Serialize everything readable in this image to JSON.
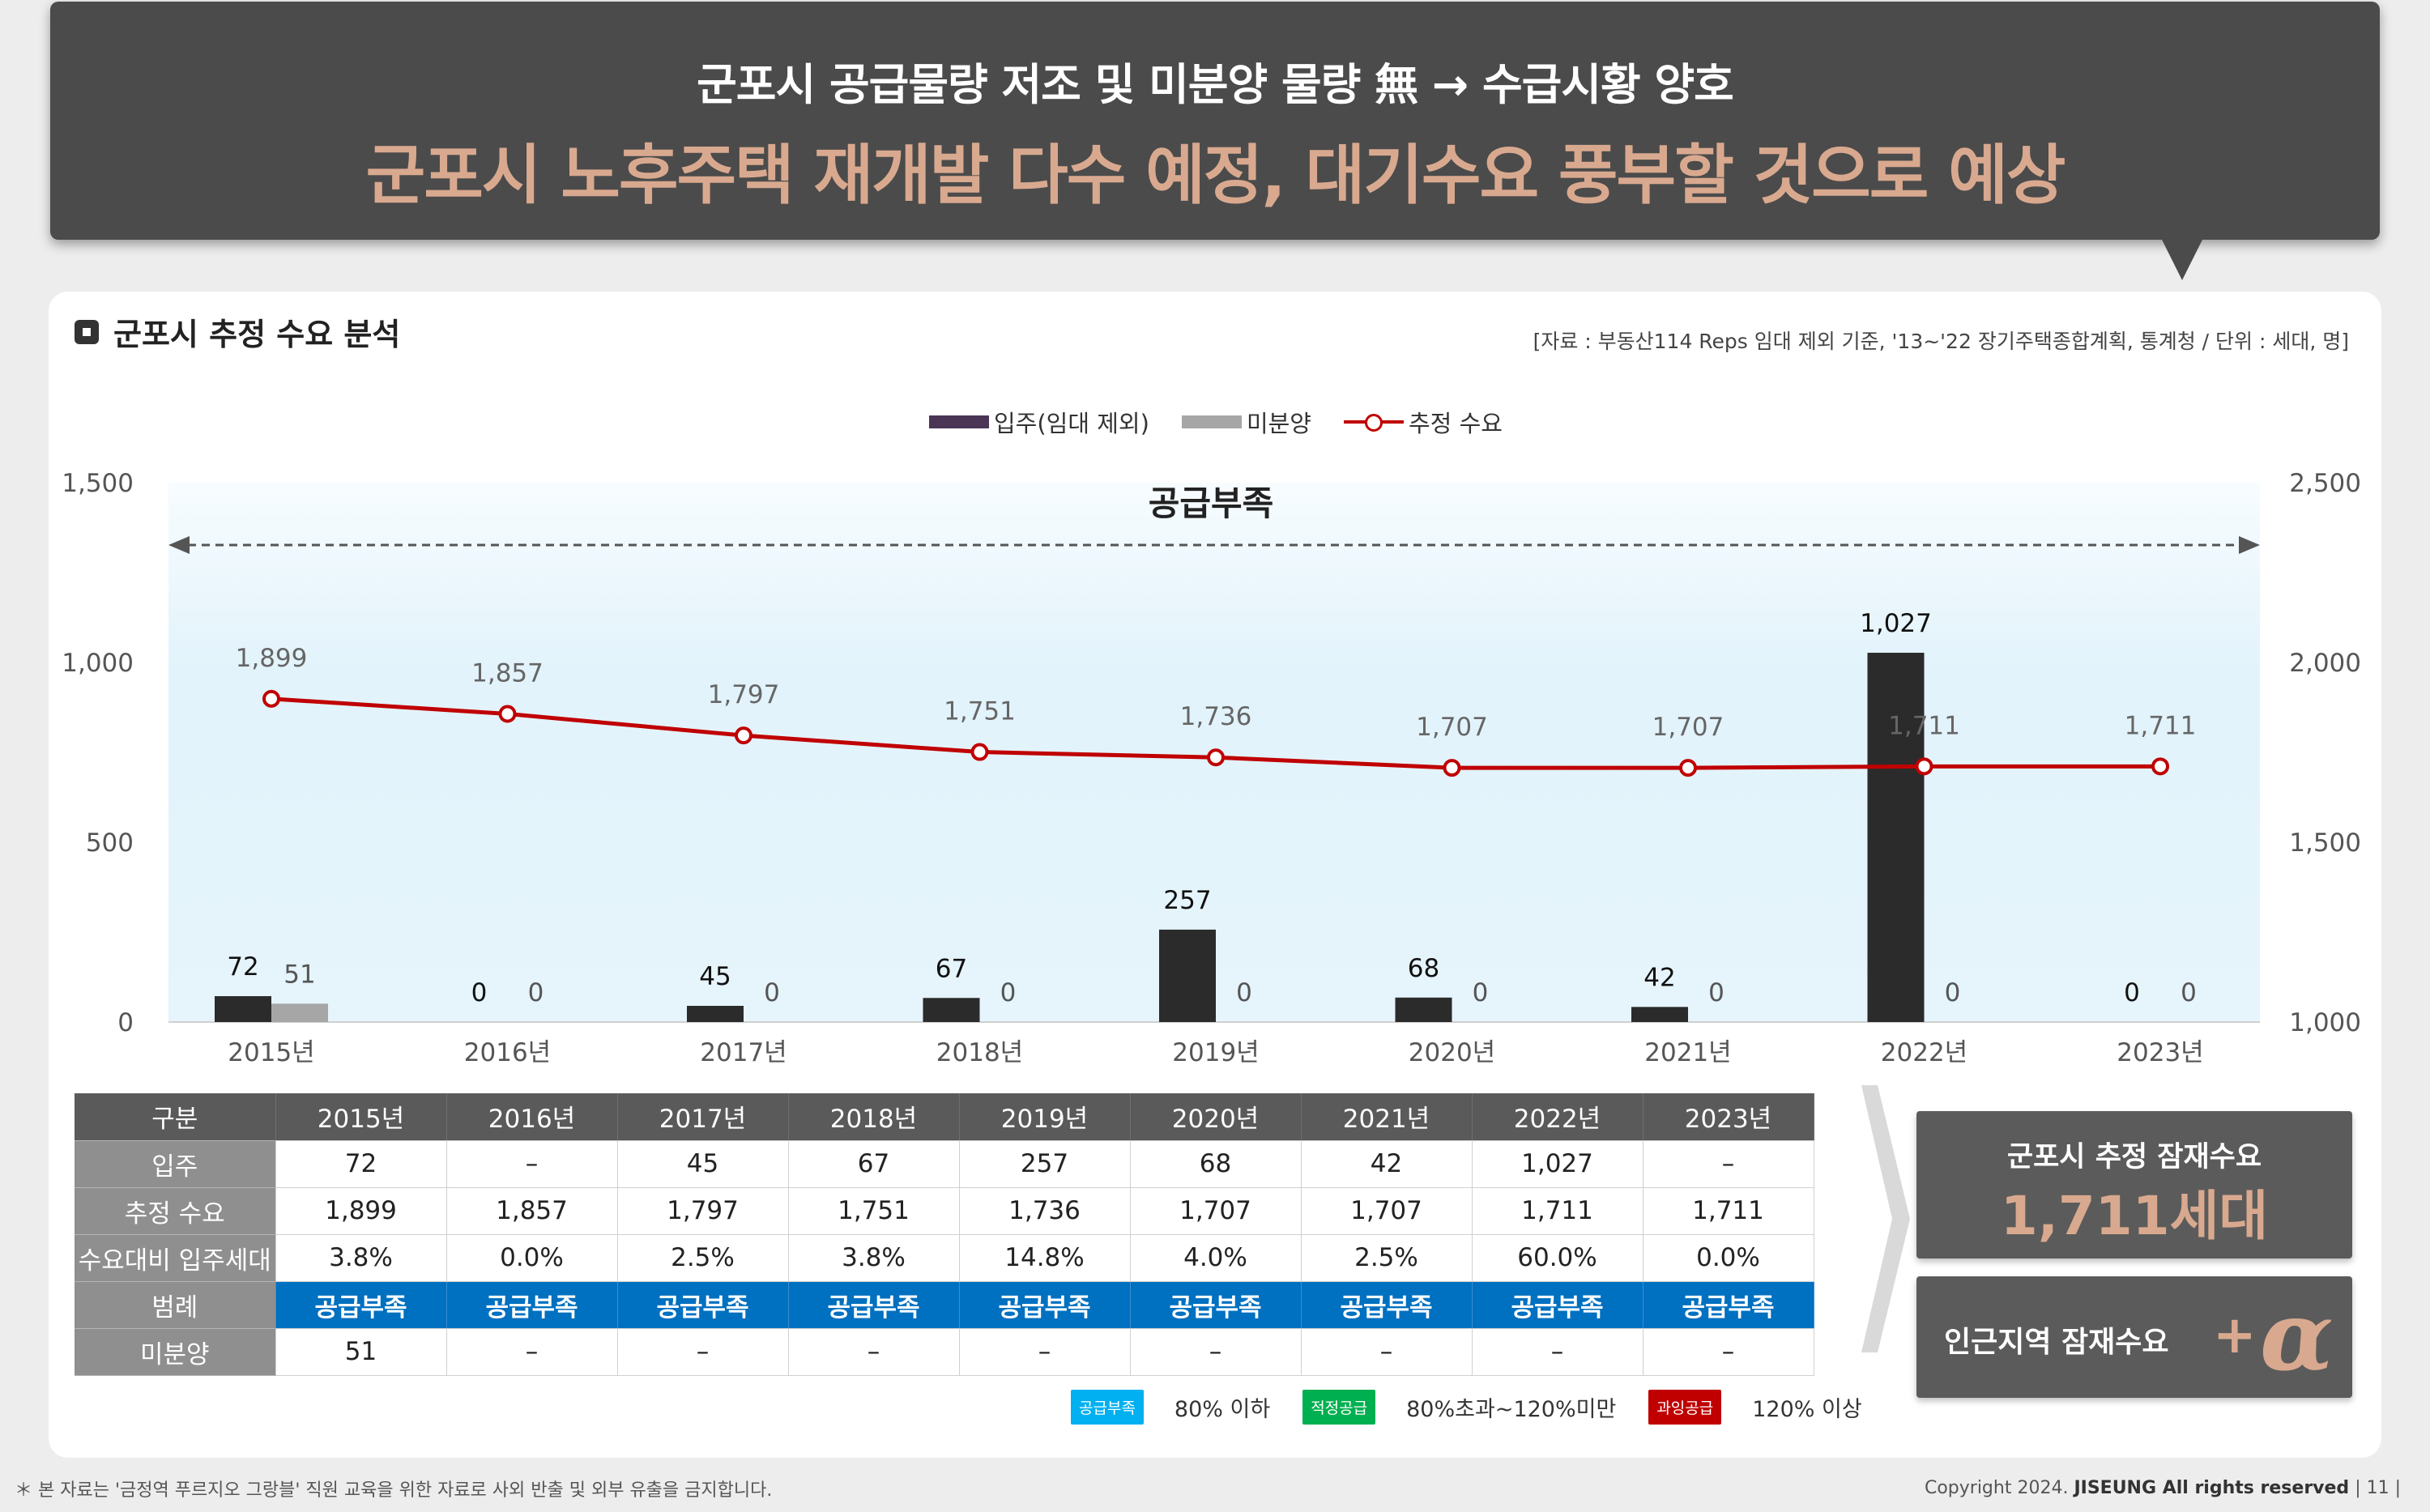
{
  "banner": {
    "line1": "군포시 공급물량 저조 및 미분양 물량 無 → 수급시황 양호",
    "line2": "군포시 노후주택  재개발 다수 예정, 대기수요 풍부할 것으로 예상"
  },
  "section": {
    "title": "군포시 추정 수요 분석",
    "source": "[자료 : 부동산114 Reps 임대 제외 기준, '13~'22 장기주택종합계획, 통계청 / 단위 : 세대, 명]"
  },
  "colors": {
    "move_in": "#2b2b2b",
    "unsold": "#a6a6a6",
    "demand": "#c00000",
    "shortage_band": "#dff2fb",
    "legend_blue": "#0070c0"
  },
  "chart_data": {
    "type": "bar+line",
    "categories": [
      "2015년",
      "2016년",
      "2017년",
      "2018년",
      "2019년",
      "2020년",
      "2021년",
      "2022년",
      "2023년"
    ],
    "series": [
      {
        "name": "입주(임대 제외)",
        "type": "bar",
        "axis": "left",
        "values": [
          72,
          0,
          45,
          67,
          257,
          68,
          42,
          1027,
          0
        ]
      },
      {
        "name": "미분양",
        "type": "bar",
        "axis": "left",
        "values": [
          51,
          0,
          0,
          0,
          0,
          0,
          0,
          0,
          0
        ]
      },
      {
        "name": "추정 수요",
        "type": "line",
        "axis": "right",
        "values": [
          1899,
          1857,
          1797,
          1751,
          1736,
          1707,
          1707,
          1711,
          1711
        ]
      }
    ],
    "left_axis": {
      "min": 0,
      "max": 1500,
      "ticks": [
        "0",
        "500",
        "1,000",
        "1,500"
      ]
    },
    "right_axis": {
      "min": 1000,
      "max": 2500,
      "ticks": [
        "1,000",
        "1,500",
        "2,000",
        "2,500"
      ]
    },
    "annotation": "공급부족",
    "legend_position": "top-center",
    "grid": false
  },
  "table": {
    "header": [
      "구분",
      "2015년",
      "2016년",
      "2017년",
      "2018년",
      "2019년",
      "2020년",
      "2021년",
      "2022년",
      "2023년"
    ],
    "rows": [
      {
        "label": "입주",
        "cells": [
          "72",
          "–",
          "45",
          "67",
          "257",
          "68",
          "42",
          "1,027",
          "–"
        ]
      },
      {
        "label": "추정 수요",
        "cells": [
          "1,899",
          "1,857",
          "1,797",
          "1,751",
          "1,736",
          "1,707",
          "1,707",
          "1,711",
          "1,711"
        ]
      },
      {
        "label": "수요대비 입주세대",
        "cells": [
          "3.8%",
          "0.0%",
          "2.5%",
          "3.8%",
          "14.8%",
          "4.0%",
          "2.5%",
          "60.0%",
          "0.0%"
        ]
      },
      {
        "label": "범례",
        "cells": [
          "공급부족",
          "공급부족",
          "공급부족",
          "공급부족",
          "공급부족",
          "공급부족",
          "공급부족",
          "공급부족",
          "공급부족"
        ]
      },
      {
        "label": "미분양",
        "cells": [
          "51",
          "–",
          "–",
          "–",
          "–",
          "–",
          "–",
          "–",
          "–"
        ]
      }
    ]
  },
  "summary": {
    "demand_title": "군포시 추정 잠재수요",
    "demand_value": "1,711세대",
    "nearby_title": "인근지역 잠재수요",
    "plus": "+",
    "alpha": "α"
  },
  "status_legend": [
    {
      "chip": "공급부족",
      "text": "80% 이하",
      "color": "#00b0f0"
    },
    {
      "chip": "적정공급",
      "text": "80%초과~120%미만",
      "color": "#00b050"
    },
    {
      "chip": "과잉공급",
      "text": "120% 이상",
      "color": "#c00000"
    }
  ],
  "footer": {
    "note": "＊ 본 자료는 '금정역 푸르지오 그랑블' 직원 교육을 위한 자료로 사외 반출 및 외부 유출을 금지합니다.",
    "copyright_prefix": "Copyright 2024.",
    "copyright_brand": "JISEUNG All rights reserved",
    "page": "| 11 |"
  }
}
